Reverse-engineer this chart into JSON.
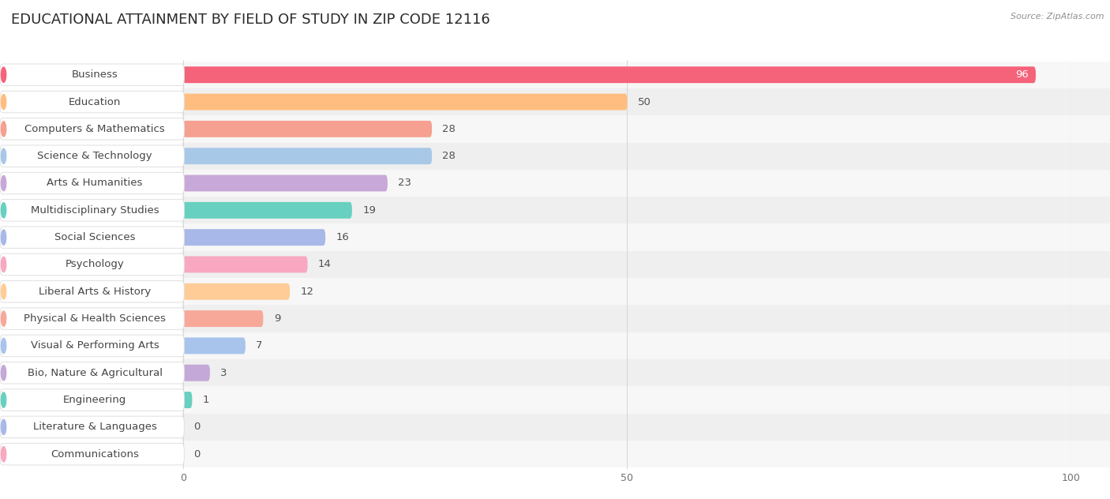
{
  "title": "EDUCATIONAL ATTAINMENT BY FIELD OF STUDY IN ZIP CODE 12116",
  "source": "Source: ZipAtlas.com",
  "categories": [
    "Business",
    "Education",
    "Computers & Mathematics",
    "Science & Technology",
    "Arts & Humanities",
    "Multidisciplinary Studies",
    "Social Sciences",
    "Psychology",
    "Liberal Arts & History",
    "Physical & Health Sciences",
    "Visual & Performing Arts",
    "Bio, Nature & Agricultural",
    "Engineering",
    "Literature & Languages",
    "Communications"
  ],
  "values": [
    96,
    50,
    28,
    28,
    23,
    19,
    16,
    14,
    12,
    9,
    7,
    3,
    1,
    0,
    0
  ],
  "colors": [
    "#F5637A",
    "#FFBE80",
    "#F5A090",
    "#A8C8E8",
    "#C8A8D8",
    "#68D0C0",
    "#A8B8E8",
    "#F8A8C0",
    "#FFCC98",
    "#F8A898",
    "#A8C4EC",
    "#C4A8D8",
    "#68D0C0",
    "#A8B8E8",
    "#F8A8C0"
  ],
  "xlim": [
    0,
    100
  ],
  "xticks": [
    0,
    50,
    100
  ],
  "bar_height": 0.58,
  "background_color": "#FFFFFF",
  "title_fontsize": 13,
  "label_fontsize": 9.5,
  "value_fontsize": 9.5,
  "row_colors": [
    "#F7F7F7",
    "#EFEFEF"
  ]
}
